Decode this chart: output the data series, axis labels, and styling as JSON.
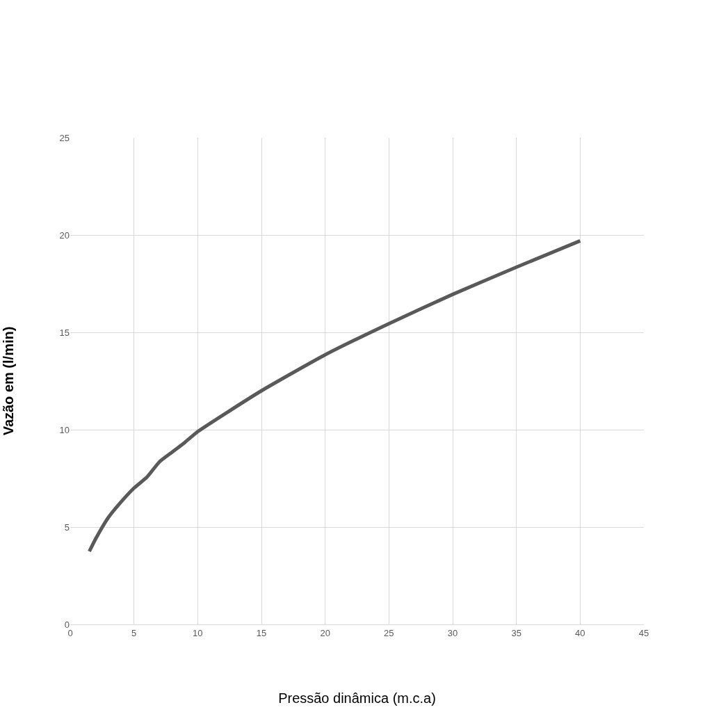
{
  "chart_data": {
    "type": "line",
    "xlabel": "Pressão dinâmica (m.c.a)",
    "ylabel": "Vazão em (l/min)",
    "x": [
      1.5,
      2,
      3,
      4,
      5,
      6,
      7,
      8,
      9,
      10,
      15,
      20,
      25,
      30,
      35,
      40
    ],
    "series": [
      {
        "color": "#595959",
        "values": [
          3.75,
          4.4,
          5.5,
          6.3,
          7.0,
          7.55,
          8.35,
          8.85,
          9.35,
          9.9,
          12.0,
          13.85,
          15.45,
          16.95,
          18.35,
          19.7
        ]
      }
    ],
    "xlim": [
      0,
      45
    ],
    "xticks": [
      0,
      5,
      10,
      15,
      20,
      25,
      30,
      35,
      40,
      45
    ],
    "ylim": [
      0,
      25
    ],
    "yticks": [
      0,
      5,
      10,
      15,
      20,
      25
    ],
    "grid": true,
    "legend": false,
    "marker": "none",
    "line_style": "solid"
  }
}
